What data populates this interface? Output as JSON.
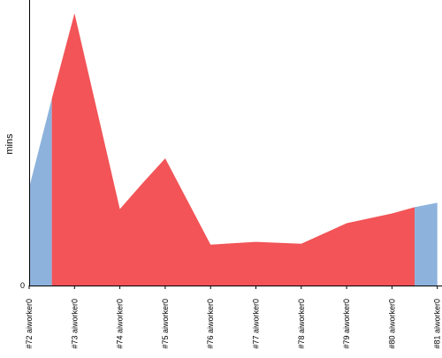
{
  "chart_data": {
    "type": "area",
    "title": "",
    "xlabel": "",
    "ylabel": "mins",
    "y_ticks": [
      "0"
    ],
    "ylim": [
      0,
      30.6
    ],
    "x": [
      "#72 aiworker0",
      "#73 aiworker0",
      "#74 aiworker0",
      "#75 aiworker0",
      "#76 aiworker0",
      "#77 aiworker0",
      "#78 aiworker0",
      "#79 aiworker0",
      "#80 aiworker0",
      "#81 aiworker0"
    ],
    "x_index": [
      0,
      1,
      2,
      3,
      4,
      5,
      6,
      7,
      8,
      9
    ],
    "series": [
      {
        "status": "success",
        "color": "#8db2dc",
        "points": [
          {
            "x": 0,
            "y": 11.0
          },
          {
            "x": 0.5,
            "y": 21.0
          }
        ]
      },
      {
        "status": "failure",
        "color": "#f25457",
        "points": [
          {
            "x": 0.5,
            "y": 21.0
          },
          {
            "x": 1,
            "y": 30.6
          },
          {
            "x": 2,
            "y": 8.6
          },
          {
            "x": 2.5,
            "y": 11.5
          },
          {
            "x": 3,
            "y": 14.3
          },
          {
            "x": 4,
            "y": 4.6
          },
          {
            "x": 5,
            "y": 4.9
          },
          {
            "x": 6,
            "y": 4.7
          },
          {
            "x": 7,
            "y": 7.0
          },
          {
            "x": 8,
            "y": 8.1
          },
          {
            "x": 8.5,
            "y": 8.8
          }
        ]
      },
      {
        "status": "success",
        "color": "#8db2dc",
        "points": [
          {
            "x": 8.5,
            "y": 8.8
          },
          {
            "x": 9,
            "y": 9.3
          }
        ]
      }
    ],
    "grid": false,
    "legend": "none"
  }
}
